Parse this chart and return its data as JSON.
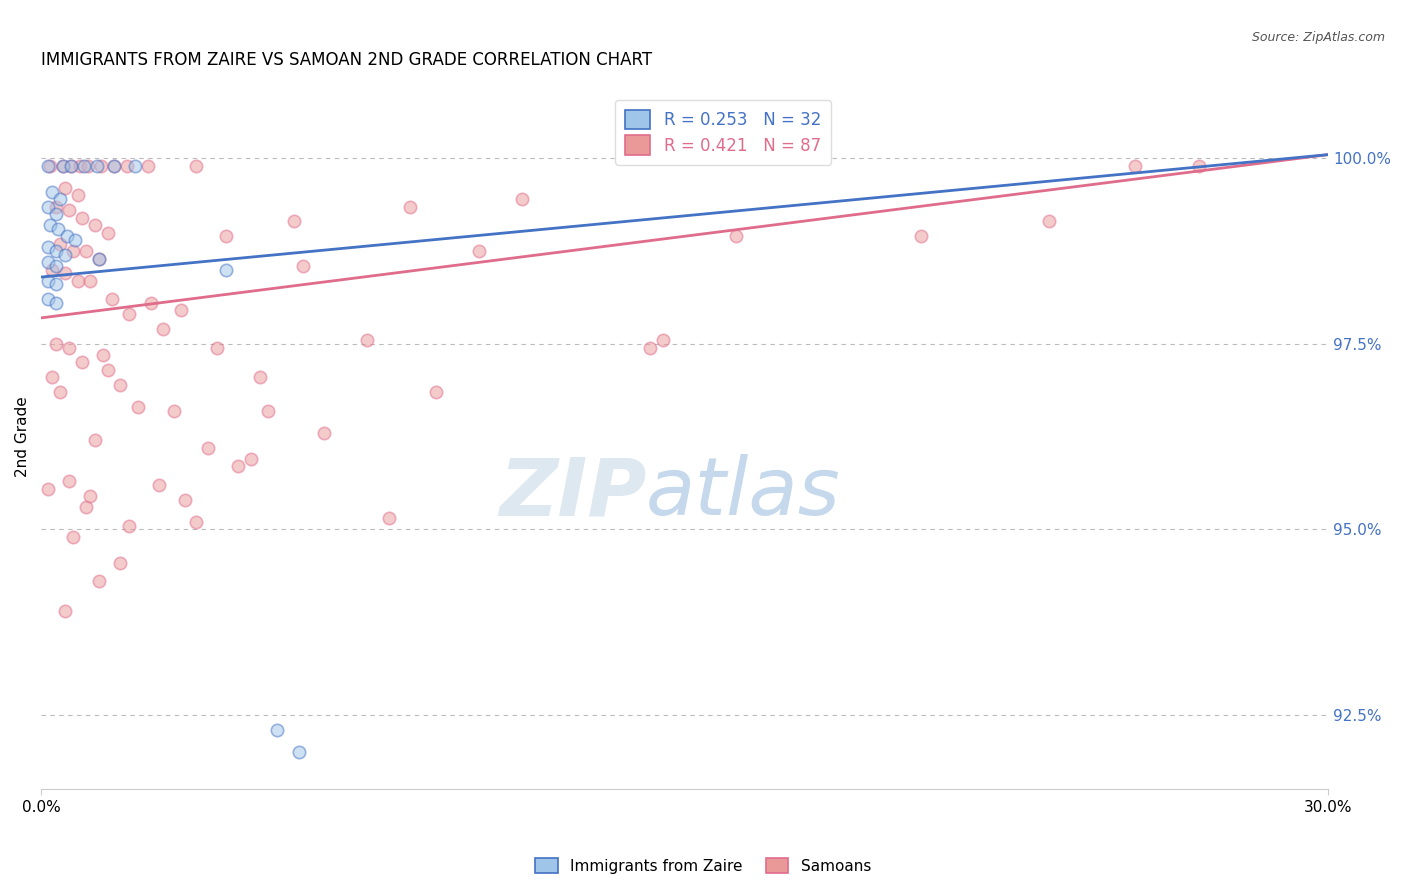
{
  "title": "IMMIGRANTS FROM ZAIRE VS SAMOAN 2ND GRADE CORRELATION CHART",
  "source": "Source: ZipAtlas.com",
  "ylabel": "2nd Grade",
  "yaxis_values": [
    100.0,
    97.5,
    95.0,
    92.5
  ],
  "xlim": [
    0.0,
    30.0
  ],
  "ylim": [
    91.5,
    101.0
  ],
  "legend_blue_R": "0.253",
  "legend_blue_N": "32",
  "legend_pink_R": "0.421",
  "legend_pink_N": "87",
  "blue_scatter": [
    [
      0.15,
      99.9
    ],
    [
      0.5,
      99.9
    ],
    [
      0.7,
      99.9
    ],
    [
      1.0,
      99.9
    ],
    [
      1.3,
      99.9
    ],
    [
      1.7,
      99.9
    ],
    [
      2.2,
      99.9
    ],
    [
      0.25,
      99.55
    ],
    [
      0.45,
      99.45
    ],
    [
      0.15,
      99.35
    ],
    [
      0.35,
      99.25
    ],
    [
      0.2,
      99.1
    ],
    [
      0.4,
      99.05
    ],
    [
      0.6,
      98.95
    ],
    [
      0.8,
      98.9
    ],
    [
      0.15,
      98.8
    ],
    [
      0.35,
      98.75
    ],
    [
      0.55,
      98.7
    ],
    [
      0.15,
      98.6
    ],
    [
      0.35,
      98.55
    ],
    [
      1.35,
      98.65
    ],
    [
      0.15,
      98.35
    ],
    [
      0.35,
      98.3
    ],
    [
      0.15,
      98.1
    ],
    [
      0.35,
      98.05
    ],
    [
      4.3,
      98.5
    ],
    [
      5.5,
      92.3
    ],
    [
      6.0,
      92.0
    ]
  ],
  "pink_scatter": [
    [
      0.2,
      99.9
    ],
    [
      0.5,
      99.9
    ],
    [
      0.7,
      99.9
    ],
    [
      0.9,
      99.9
    ],
    [
      1.1,
      99.9
    ],
    [
      1.4,
      99.9
    ],
    [
      1.7,
      99.9
    ],
    [
      2.0,
      99.9
    ],
    [
      2.5,
      99.9
    ],
    [
      3.6,
      99.9
    ],
    [
      25.5,
      99.9
    ],
    [
      27.0,
      99.9
    ],
    [
      0.55,
      99.6
    ],
    [
      0.85,
      99.5
    ],
    [
      0.35,
      99.35
    ],
    [
      0.65,
      99.3
    ],
    [
      0.95,
      99.2
    ],
    [
      1.25,
      99.1
    ],
    [
      1.55,
      99.0
    ],
    [
      0.45,
      98.85
    ],
    [
      0.75,
      98.75
    ],
    [
      1.05,
      98.75
    ],
    [
      1.35,
      98.65
    ],
    [
      0.25,
      98.5
    ],
    [
      0.55,
      98.45
    ],
    [
      0.85,
      98.35
    ],
    [
      1.15,
      98.35
    ],
    [
      1.65,
      98.1
    ],
    [
      2.55,
      98.05
    ],
    [
      3.25,
      97.95
    ],
    [
      2.05,
      97.9
    ],
    [
      2.85,
      97.7
    ],
    [
      0.35,
      97.5
    ],
    [
      0.65,
      97.45
    ],
    [
      1.45,
      97.35
    ],
    [
      4.1,
      97.45
    ],
    [
      7.6,
      97.55
    ],
    [
      14.2,
      97.45
    ],
    [
      0.25,
      97.05
    ],
    [
      1.85,
      96.95
    ],
    [
      5.1,
      97.05
    ],
    [
      9.2,
      96.85
    ],
    [
      3.1,
      96.6
    ],
    [
      1.25,
      96.2
    ],
    [
      4.9,
      95.95
    ],
    [
      0.15,
      95.55
    ],
    [
      1.05,
      95.3
    ],
    [
      3.6,
      95.1
    ],
    [
      8.1,
      95.15
    ],
    [
      0.75,
      94.9
    ],
    [
      1.85,
      94.55
    ],
    [
      0.55,
      93.9
    ],
    [
      14.5,
      97.55
    ],
    [
      20.5,
      98.95
    ],
    [
      23.5,
      99.15
    ],
    [
      6.1,
      98.55
    ],
    [
      10.2,
      98.75
    ],
    [
      16.2,
      98.95
    ],
    [
      4.3,
      98.95
    ],
    [
      5.9,
      99.15
    ],
    [
      8.6,
      99.35
    ],
    [
      11.2,
      99.45
    ],
    [
      5.3,
      96.6
    ],
    [
      6.6,
      96.3
    ],
    [
      0.45,
      96.85
    ],
    [
      2.25,
      96.65
    ],
    [
      0.95,
      97.25
    ],
    [
      1.55,
      97.15
    ],
    [
      3.9,
      96.1
    ],
    [
      4.6,
      95.85
    ],
    [
      2.75,
      95.6
    ],
    [
      3.35,
      95.4
    ],
    [
      1.35,
      94.3
    ],
    [
      2.05,
      95.05
    ],
    [
      0.65,
      95.65
    ],
    [
      1.15,
      95.45
    ]
  ],
  "blue_line_x": [
    0.0,
    30.0
  ],
  "blue_line_y": [
    98.4,
    100.05
  ],
  "pink_line_x": [
    0.0,
    30.0
  ],
  "pink_line_y": [
    97.85,
    100.05
  ],
  "blue_color": "#9fc5e8",
  "pink_color": "#ea9999",
  "blue_line_color": "#4472c4",
  "pink_line_color": "#e06c8c",
  "marker_size": 80,
  "marker_alpha": 0.5,
  "marker_linewidth": 1.2,
  "background_color": "#ffffff",
  "grid_color": "#bbbbbb",
  "right_axis_color": "#4472c4",
  "watermark_zip_color": "#d8e4f0",
  "watermark_atlas_color": "#c8d8e8",
  "title_fontsize": 12,
  "source_fontsize": 9,
  "axis_fontsize": 11,
  "legend_fontsize": 12
}
